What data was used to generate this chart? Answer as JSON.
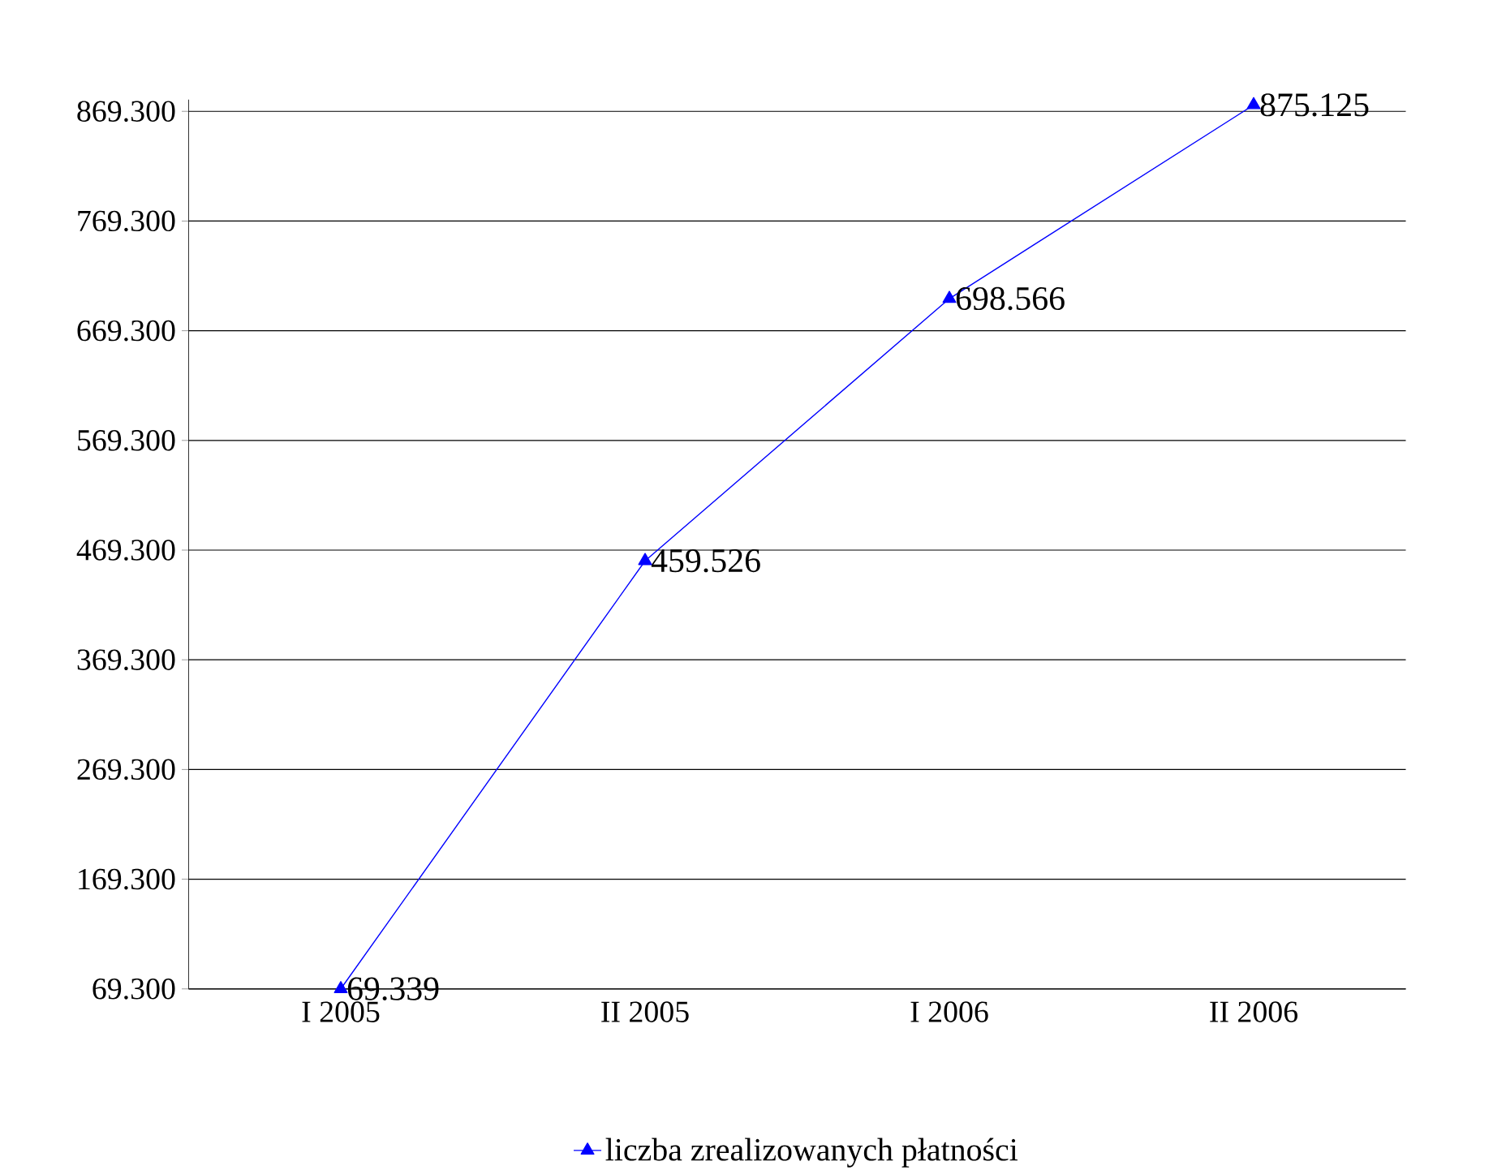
{
  "chart_data": {
    "type": "line",
    "categories": [
      "I 2005",
      "II 2005",
      "I 2006",
      "II 2006"
    ],
    "series": [
      {
        "name": "liczba zrealizowanych płatności",
        "color": "#0000ff",
        "values": [
          69339,
          459526,
          698566,
          875125
        ],
        "value_labels": [
          "69.339",
          "459.526",
          "698.566",
          "875.125"
        ]
      }
    ],
    "ylim": [
      69300,
      880000
    ],
    "yticks": [
      {
        "value": 69300,
        "label": "69.300"
      },
      {
        "value": 169300,
        "label": "169.300"
      },
      {
        "value": 269300,
        "label": "269.300"
      },
      {
        "value": 369300,
        "label": "369.300"
      },
      {
        "value": 469300,
        "label": "469.300"
      },
      {
        "value": 569300,
        "label": "569.300"
      },
      {
        "value": 669300,
        "label": "669.300"
      },
      {
        "value": 769300,
        "label": "769.300"
      },
      {
        "value": 869300,
        "label": "869.300"
      }
    ],
    "grid": "y",
    "legend": "bottom",
    "marker": "triangle",
    "line_style": "solid"
  }
}
